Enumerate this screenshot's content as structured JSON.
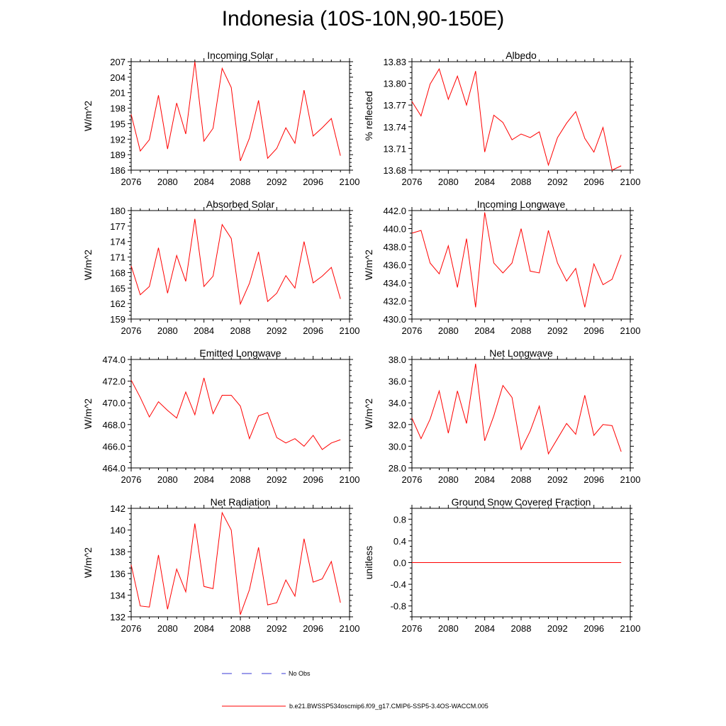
{
  "title": "Indonesia (10S-10N,90-150E)",
  "legend": {
    "no_obs_label": "No Obs",
    "model_label": "b.e21.BWSSP534oscmip6.f09_g17.CMIP6-SSP5-3.4OS-WACCM.005",
    "no_obs_color": "#3a3ad6",
    "model_color": "#ff0000"
  },
  "chart_data": [
    {
      "type": "line",
      "title": "Incoming Solar",
      "xlabel": "",
      "ylabel": "W/m^2",
      "xlim": [
        2076,
        2100
      ],
      "ylim": [
        186,
        207
      ],
      "xticks": [
        2076,
        2080,
        2084,
        2088,
        2092,
        2096,
        2100
      ],
      "yticks": [
        186,
        189,
        192,
        195,
        198,
        201,
        204,
        207
      ],
      "ytick_labels": [
        "186",
        "189",
        "192",
        "195",
        "198",
        "201",
        "204",
        "207"
      ],
      "x": [
        2076,
        2077,
        2078,
        2079,
        2080,
        2081,
        2082,
        2083,
        2084,
        2085,
        2086,
        2087,
        2088,
        2089,
        2090,
        2091,
        2092,
        2093,
        2094,
        2095,
        2096,
        2097,
        2098,
        2099
      ],
      "series": [
        {
          "name": "b.e21.BWSSP534oscmip6.f09_g17.CMIP6-SSP5-3.4OS-WACCM.005",
          "values": [
            196.8,
            189.7,
            191.9,
            200.5,
            190.1,
            199.0,
            193.0,
            207.0,
            191.6,
            194.1,
            205.7,
            202.0,
            187.8,
            192.2,
            199.5,
            188.3,
            190.2,
            194.2,
            191.2,
            201.5,
            192.6,
            194.2,
            196.0,
            188.8
          ]
        }
      ]
    },
    {
      "type": "line",
      "title": "Albedo",
      "xlabel": "",
      "ylabel": "% reflected",
      "xlim": [
        2076,
        2100
      ],
      "ylim": [
        13.68,
        13.83
      ],
      "xticks": [
        2076,
        2080,
        2084,
        2088,
        2092,
        2096,
        2100
      ],
      "yticks": [
        13.68,
        13.71,
        13.74,
        13.77,
        13.8,
        13.83
      ],
      "ytick_labels": [
        "13.68",
        "13.71",
        "13.74",
        "13.77",
        "13.80",
        "13.83"
      ],
      "x": [
        2076,
        2077,
        2078,
        2079,
        2080,
        2081,
        2082,
        2083,
        2084,
        2085,
        2086,
        2087,
        2088,
        2089,
        2090,
        2091,
        2092,
        2093,
        2094,
        2095,
        2096,
        2097,
        2098,
        2099
      ],
      "series": [
        {
          "name": "b.e21.BWSSP534oscmip6.f09_g17.CMIP6-SSP5-3.4OS-WACCM.005",
          "values": [
            13.775,
            13.755,
            13.799,
            13.82,
            13.778,
            13.81,
            13.77,
            13.817,
            13.705,
            13.756,
            13.746,
            13.722,
            13.73,
            13.725,
            13.733,
            13.687,
            13.725,
            13.745,
            13.761,
            13.724,
            13.705,
            13.739,
            13.68,
            13.686
          ]
        }
      ]
    },
    {
      "type": "line",
      "title": "Absorbed Solar",
      "xlabel": "",
      "ylabel": "W/m^2",
      "xlim": [
        2076,
        2100
      ],
      "ylim": [
        159,
        180
      ],
      "xticks": [
        2076,
        2080,
        2084,
        2088,
        2092,
        2096,
        2100
      ],
      "yticks": [
        159,
        162,
        165,
        168,
        171,
        174,
        177,
        180
      ],
      "ytick_labels": [
        "159",
        "162",
        "165",
        "168",
        "171",
        "174",
        "177",
        "180"
      ],
      "x": [
        2076,
        2077,
        2078,
        2079,
        2080,
        2081,
        2082,
        2083,
        2084,
        2085,
        2086,
        2087,
        2088,
        2089,
        2090,
        2091,
        2092,
        2093,
        2094,
        2095,
        2096,
        2097,
        2098,
        2099
      ],
      "series": [
        {
          "name": "b.e21.BWSSP534oscmip6.f09_g17.CMIP6-SSP5-3.4OS-WACCM.005",
          "values": [
            169.3,
            163.7,
            165.3,
            172.8,
            164.0,
            171.3,
            166.3,
            178.4,
            165.3,
            167.3,
            177.3,
            174.6,
            161.9,
            165.9,
            172.0,
            162.4,
            164.0,
            167.4,
            165.0,
            174.0,
            166.0,
            167.3,
            169.0,
            162.9
          ]
        }
      ]
    },
    {
      "type": "line",
      "title": "Incoming Longwave",
      "xlabel": "",
      "ylabel": "W/m^2",
      "xlim": [
        2076,
        2100
      ],
      "ylim": [
        430,
        442
      ],
      "xticks": [
        2076,
        2080,
        2084,
        2088,
        2092,
        2096,
        2100
      ],
      "yticks": [
        430,
        432,
        434,
        436,
        438,
        440,
        442
      ],
      "ytick_labels": [
        "430.0",
        "432.0",
        "434.0",
        "436.0",
        "438.0",
        "440.0",
        "442.0"
      ],
      "x": [
        2076,
        2077,
        2078,
        2079,
        2080,
        2081,
        2082,
        2083,
        2084,
        2085,
        2086,
        2087,
        2088,
        2089,
        2090,
        2091,
        2092,
        2093,
        2094,
        2095,
        2096,
        2097,
        2098,
        2099
      ],
      "series": [
        {
          "name": "b.e21.BWSSP534oscmip6.f09_g17.CMIP6-SSP5-3.4OS-WACCM.005",
          "values": [
            439.5,
            439.8,
            436.2,
            435.0,
            438.1,
            433.5,
            438.9,
            431.3,
            441.8,
            436.2,
            435.1,
            436.2,
            440.0,
            435.3,
            435.1,
            439.8,
            436.2,
            434.2,
            435.6,
            431.3,
            436.1,
            433.8,
            434.4,
            437.1
          ]
        }
      ]
    },
    {
      "type": "line",
      "title": "Emitted Longwave",
      "xlabel": "",
      "ylabel": "W/m^2",
      "xlim": [
        2076,
        2100
      ],
      "ylim": [
        464,
        474
      ],
      "xticks": [
        2076,
        2080,
        2084,
        2088,
        2092,
        2096,
        2100
      ],
      "yticks": [
        464,
        466,
        468,
        470,
        472,
        474
      ],
      "ytick_labels": [
        "464.0",
        "466.0",
        "468.0",
        "470.0",
        "472.0",
        "474.0"
      ],
      "x": [
        2076,
        2077,
        2078,
        2079,
        2080,
        2081,
        2082,
        2083,
        2084,
        2085,
        2086,
        2087,
        2088,
        2089,
        2090,
        2091,
        2092,
        2093,
        2094,
        2095,
        2096,
        2097,
        2098,
        2099
      ],
      "series": [
        {
          "name": "b.e21.BWSSP534oscmip6.f09_g17.CMIP6-SSP5-3.4OS-WACCM.005",
          "values": [
            472.1,
            470.5,
            468.7,
            470.1,
            469.3,
            468.6,
            471.0,
            468.9,
            472.3,
            469.0,
            470.7,
            470.7,
            469.7,
            466.7,
            468.8,
            469.1,
            466.8,
            466.3,
            466.7,
            466.0,
            467.0,
            465.7,
            466.3,
            466.6
          ]
        }
      ]
    },
    {
      "type": "line",
      "title": "Net Longwave",
      "xlabel": "",
      "ylabel": "W/m^2",
      "xlim": [
        2076,
        2100
      ],
      "ylim": [
        28,
        38
      ],
      "xticks": [
        2076,
        2080,
        2084,
        2088,
        2092,
        2096,
        2100
      ],
      "yticks": [
        28,
        30,
        32,
        34,
        36,
        38
      ],
      "ytick_labels": [
        "28.0",
        "30.0",
        "32.0",
        "34.0",
        "36.0",
        "38.0"
      ],
      "x": [
        2076,
        2077,
        2078,
        2079,
        2080,
        2081,
        2082,
        2083,
        2084,
        2085,
        2086,
        2087,
        2088,
        2089,
        2090,
        2091,
        2092,
        2093,
        2094,
        2095,
        2096,
        2097,
        2098,
        2099
      ],
      "series": [
        {
          "name": "b.e21.BWSSP534oscmip6.f09_g17.CMIP6-SSP5-3.4OS-WACCM.005",
          "values": [
            32.6,
            30.7,
            32.5,
            35.1,
            31.2,
            35.1,
            32.1,
            37.6,
            30.5,
            32.8,
            35.6,
            34.5,
            29.7,
            31.4,
            33.7,
            29.3,
            30.7,
            32.1,
            31.1,
            34.7,
            31.0,
            32.0,
            31.9,
            29.5
          ]
        }
      ]
    },
    {
      "type": "line",
      "title": "Net Radiation",
      "xlabel": "",
      "ylabel": "W/m^2",
      "xlim": [
        2076,
        2100
      ],
      "ylim": [
        132,
        142
      ],
      "xticks": [
        2076,
        2080,
        2084,
        2088,
        2092,
        2096,
        2100
      ],
      "yticks": [
        132,
        134,
        136,
        138,
        140,
        142
      ],
      "ytick_labels": [
        "132",
        "134",
        "136",
        "138",
        "140",
        "142"
      ],
      "x": [
        2076,
        2077,
        2078,
        2079,
        2080,
        2081,
        2082,
        2083,
        2084,
        2085,
        2086,
        2087,
        2088,
        2089,
        2090,
        2091,
        2092,
        2093,
        2094,
        2095,
        2096,
        2097,
        2098,
        2099
      ],
      "series": [
        {
          "name": "b.e21.BWSSP534oscmip6.f09_g17.CMIP6-SSP5-3.4OS-WACCM.005",
          "values": [
            136.8,
            133.0,
            132.9,
            137.7,
            132.7,
            136.4,
            134.3,
            140.6,
            134.8,
            134.6,
            141.6,
            140.0,
            132.2,
            134.5,
            138.4,
            133.1,
            133.3,
            135.4,
            133.9,
            139.2,
            135.2,
            135.5,
            137.1,
            133.3
          ]
        }
      ]
    },
    {
      "type": "line",
      "title": "Ground Snow Covered Fraction",
      "xlabel": "",
      "ylabel": "unitless",
      "xlim": [
        2076,
        2100
      ],
      "ylim": [
        -1.0,
        1.0
      ],
      "xticks": [
        2076,
        2080,
        2084,
        2088,
        2092,
        2096,
        2100
      ],
      "yticks": [
        -0.8,
        -0.4,
        0.0,
        0.4,
        0.8
      ],
      "ytick_labels": [
        "-0.8",
        "-0.4",
        "0.0",
        "0.4",
        "0.8"
      ],
      "x": [
        2076,
        2077,
        2078,
        2079,
        2080,
        2081,
        2082,
        2083,
        2084,
        2085,
        2086,
        2087,
        2088,
        2089,
        2090,
        2091,
        2092,
        2093,
        2094,
        2095,
        2096,
        2097,
        2098,
        2099
      ],
      "series": [
        {
          "name": "b.e21.BWSSP534oscmip6.f09_g17.CMIP6-SSP5-3.4OS-WACCM.005",
          "values": [
            0,
            0,
            0,
            0,
            0,
            0,
            0,
            0,
            0,
            0,
            0,
            0,
            0,
            0,
            0,
            0,
            0,
            0,
            0,
            0,
            0,
            0,
            0,
            0
          ]
        }
      ]
    }
  ]
}
